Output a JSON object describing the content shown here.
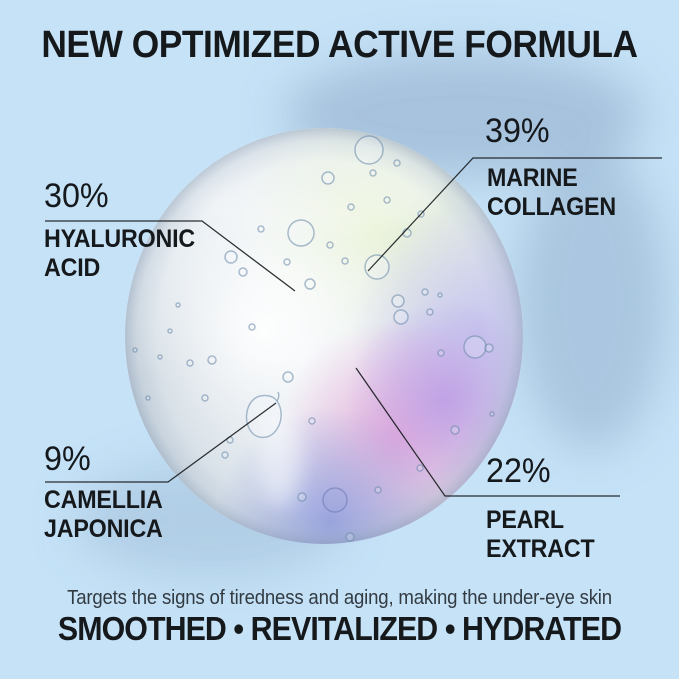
{
  "theme": {
    "background": "#c5e2f7",
    "ink": "#16191c",
    "muted_ink": "#333b42",
    "shadow_blue": "#8aa4c4",
    "droplet_green": "#eaf4d4",
    "droplet_lavender": "#c7c5ee",
    "droplet_magenta": "#eaa6d8",
    "droplet_purple": "#b394e6",
    "droplet_periwinkle": "#8f9ade"
  },
  "header": {
    "title": "NEW OPTIMIZED ACTIVE FORMULA"
  },
  "callouts": [
    {
      "id": "hyaluronic-acid",
      "percent": "30%",
      "name_lines": [
        "HYALURONIC",
        "ACID"
      ]
    },
    {
      "id": "marine-collagen",
      "percent": "39%",
      "name_lines": [
        "MARINE",
        "COLLAGEN"
      ]
    },
    {
      "id": "camellia-japonica",
      "percent": "9%",
      "name_lines": [
        "CAMELLIA",
        "JAPONICA"
      ]
    },
    {
      "id": "pearl-extract",
      "percent": "22%",
      "name_lines": [
        "PEARL",
        "EXTRACT"
      ]
    }
  ],
  "footer": {
    "description": "Targets the signs of tiredness and aging, making the under-eye skin",
    "benefits": "SMOOTHED • REVITALIZED • HYDRATED"
  }
}
